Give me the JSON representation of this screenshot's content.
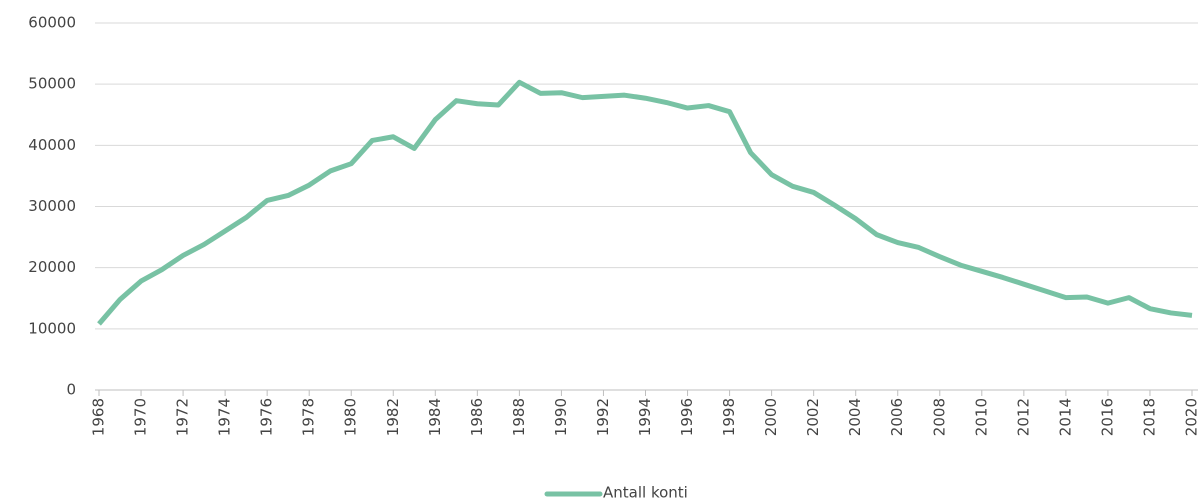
{
  "chart_data": {
    "type": "line",
    "x": [
      1968,
      1969,
      1970,
      1971,
      1972,
      1973,
      1974,
      1975,
      1976,
      1977,
      1978,
      1979,
      1980,
      1981,
      1982,
      1983,
      1984,
      1985,
      1986,
      1987,
      1988,
      1989,
      1990,
      1991,
      1992,
      1993,
      1994,
      1995,
      1996,
      1997,
      1998,
      1999,
      2000,
      2001,
      2002,
      2003,
      2004,
      2005,
      2006,
      2007,
      2008,
      2009,
      2010,
      2011,
      2012,
      2013,
      2014,
      2015,
      2016,
      2017,
      2018,
      2019,
      2020
    ],
    "series": [
      {
        "name": "Antall konti",
        "color": "#78c2a4",
        "values": [
          10800,
          14800,
          17800,
          19700,
          22000,
          23800,
          26000,
          28200,
          31000,
          31800,
          33500,
          35800,
          37000,
          40800,
          41400,
          39500,
          44200,
          47300,
          46800,
          46600,
          50300,
          48500,
          48600,
          47800,
          48000,
          48200,
          47700,
          47000,
          46100,
          46500,
          45500,
          38800,
          35200,
          33300,
          32300,
          30200,
          28000,
          25400,
          24100,
          23300,
          21800,
          20400,
          19400,
          18400,
          17300,
          16200,
          15100,
          15200,
          14200,
          15100,
          13300,
          12600,
          12200
        ]
      }
    ],
    "xlim": [
      1968,
      2020
    ],
    "xticks": [
      1968,
      1970,
      1972,
      1974,
      1976,
      1978,
      1980,
      1982,
      1984,
      1986,
      1988,
      1990,
      1992,
      1994,
      1996,
      1998,
      2000,
      2002,
      2004,
      2006,
      2008,
      2010,
      2012,
      2014,
      2016,
      2018,
      2020
    ],
    "ylim": [
      0,
      60000
    ],
    "yticks": [
      0,
      10000,
      20000,
      30000,
      40000,
      50000,
      60000
    ],
    "grid": true,
    "legend": "bottom"
  }
}
